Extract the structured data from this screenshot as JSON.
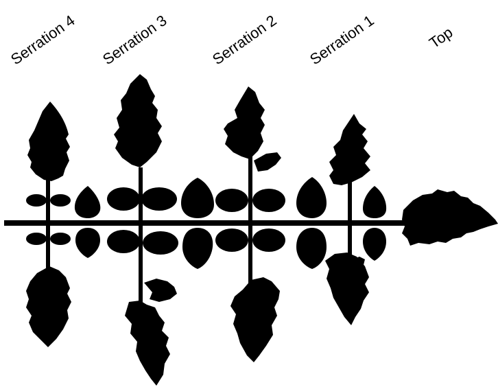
{
  "labels": {
    "serration_4": "Serration 4",
    "serration_3": "Serration 3",
    "serration_2": "Serration 2",
    "serration_1": "Serration 1",
    "top": "Top"
  },
  "colors": {
    "leaf": "#000000",
    "background": "#ffffff"
  }
}
